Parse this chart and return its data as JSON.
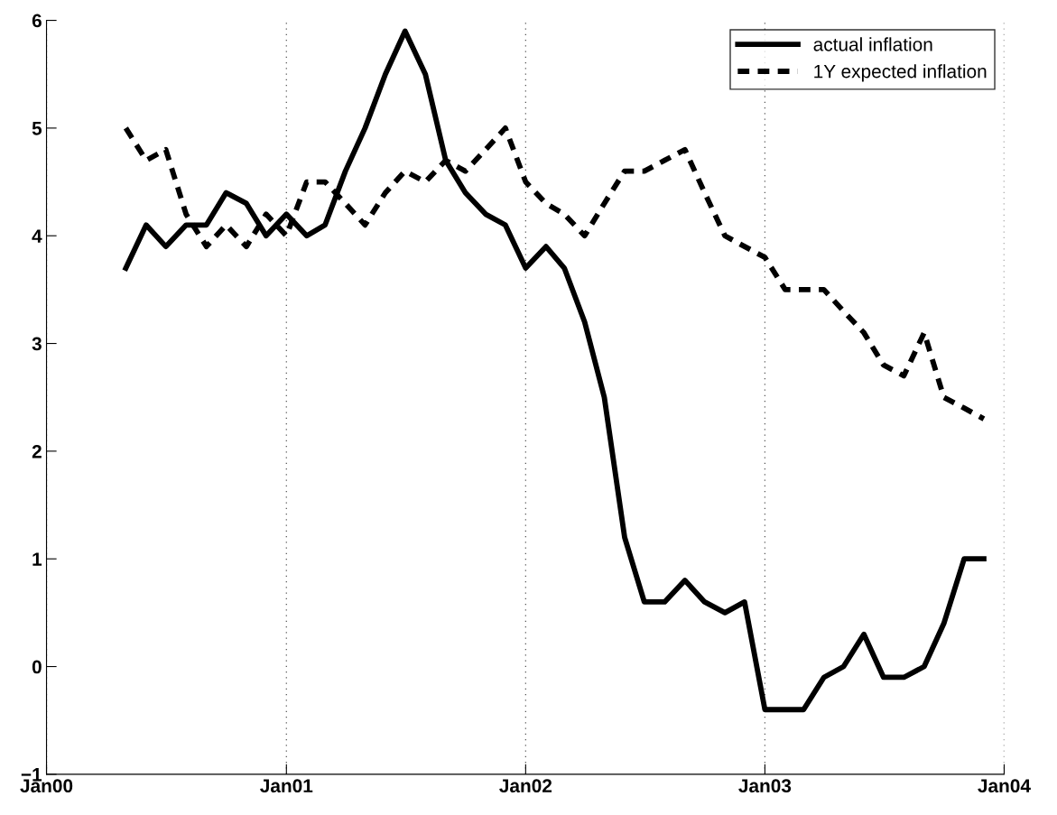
{
  "chart_data": {
    "type": "line",
    "x": [
      "2000-05",
      "2000-06",
      "2000-07",
      "2000-08",
      "2000-09",
      "2000-10",
      "2000-11",
      "2000-12",
      "2001-01",
      "2001-02",
      "2001-03",
      "2001-04",
      "2001-05",
      "2001-06",
      "2001-07",
      "2001-08",
      "2001-09",
      "2001-10",
      "2001-11",
      "2001-12",
      "2002-01",
      "2002-02",
      "2002-03",
      "2002-04",
      "2002-05",
      "2002-06",
      "2002-07",
      "2002-08",
      "2002-09",
      "2002-10",
      "2002-11",
      "2002-12",
      "2003-01",
      "2003-02",
      "2003-03",
      "2003-04",
      "2003-05",
      "2003-06",
      "2003-07",
      "2003-08",
      "2003-09",
      "2003-10",
      "2003-11",
      "2003-12"
    ],
    "series": [
      {
        "name": "actual inflation",
        "color": "#000000",
        "line_style": "solid",
        "values": [
          3.7,
          4.1,
          3.9,
          4.1,
          4.1,
          4.4,
          4.3,
          4.0,
          4.2,
          4.0,
          4.1,
          4.6,
          5.0,
          5.5,
          5.9,
          5.5,
          4.7,
          4.4,
          4.2,
          4.1,
          3.7,
          3.9,
          3.7,
          3.2,
          2.5,
          1.2,
          0.6,
          0.6,
          0.8,
          0.6,
          0.5,
          0.6,
          -0.4,
          -0.4,
          -0.4,
          -0.1,
          0.0,
          0.3,
          -0.1,
          -0.1,
          0.0,
          0.4,
          1.0,
          1.0
        ]
      },
      {
        "name": "1Y expected inflation",
        "color": "#000000",
        "line_style": "dashed",
        "values": [
          5.0,
          4.7,
          4.8,
          4.2,
          3.9,
          4.1,
          3.9,
          4.2,
          4.0,
          4.5,
          4.5,
          4.3,
          4.1,
          4.4,
          4.6,
          4.5,
          4.7,
          4.6,
          4.8,
          5.0,
          4.5,
          4.3,
          4.2,
          4.0,
          4.3,
          4.6,
          4.6,
          4.7,
          4.8,
          4.4,
          4.0,
          3.9,
          3.8,
          3.5,
          3.5,
          3.5,
          3.3,
          3.1,
          2.8,
          2.7,
          3.1,
          2.5,
          2.4,
          2.3
        ]
      }
    ],
    "xlim": [
      "2000-01",
      "2004-01"
    ],
    "xticks": [
      {
        "value": "2000-01",
        "label": "Jan00"
      },
      {
        "value": "2001-01",
        "label": "Jan01"
      },
      {
        "value": "2002-01",
        "label": "Jan02"
      },
      {
        "value": "2003-01",
        "label": "Jan03"
      },
      {
        "value": "2004-01",
        "label": "Jan04"
      }
    ],
    "ylim": [
      -1,
      6
    ],
    "yticks": [
      {
        "value": -1,
        "label": "−1"
      },
      0,
      1,
      2,
      3,
      4,
      5,
      6
    ],
    "grid": "x",
    "legend": "top right"
  }
}
